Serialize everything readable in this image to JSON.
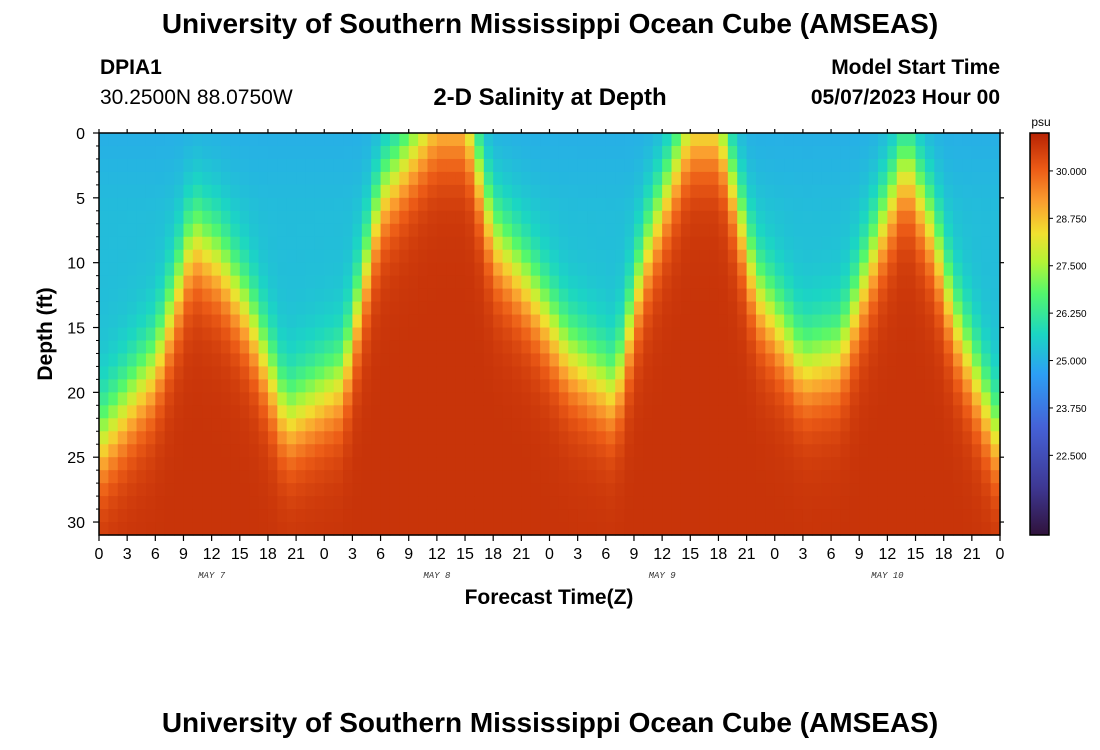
{
  "header": {
    "title": "University of Southern Mississippi Ocean Cube (AMSEAS)",
    "title_bottom": "University of Southern Mississippi Ocean Cube (AMSEAS)",
    "station": "DPIA1",
    "coords": "30.2500N  88.0750W",
    "plot_title": "2-D Salinity at Depth",
    "model_label": "Model Start Time",
    "model_time": "05/07/2023 Hour 00"
  },
  "chart_data": {
    "type": "heatmap",
    "title": "2-D Salinity at Depth",
    "xlabel": "Forecast Time(Z)",
    "ylabel": "Depth (ft)",
    "x_range_hours": [
      0,
      96
    ],
    "ylim": [
      0,
      31
    ],
    "y_ticks": [
      0,
      5,
      10,
      15,
      20,
      25,
      30
    ],
    "y_tick_labels": [
      "0",
      "5",
      "10",
      "15",
      "20",
      "25",
      "30"
    ],
    "x_tick_labels": [
      "0",
      "3",
      "6",
      "9",
      "12",
      "15",
      "18",
      "21",
      "0",
      "3",
      "6",
      "9",
      "12",
      "15",
      "18",
      "21",
      "0",
      "3",
      "6",
      "9",
      "12",
      "15",
      "18",
      "21",
      "0",
      "3",
      "6",
      "9",
      "12",
      "15",
      "18",
      "21",
      "0"
    ],
    "day_labels": [
      {
        "label": "MAY 7",
        "hour": 12
      },
      {
        "label": "MAY 8",
        "hour": 36
      },
      {
        "label": "MAY 9",
        "hour": 60
      },
      {
        "label": "MAY 10",
        "hour": 84
      }
    ],
    "colorbar": {
      "unit": "psu",
      "min": 20.4,
      "max": 31.0,
      "ticks": [
        30.0,
        28.75,
        27.5,
        26.25,
        25.0,
        23.75,
        22.5
      ],
      "tick_labels": [
        "30.000",
        "28.750",
        "27.500",
        "26.250",
        "25.000",
        "23.750",
        "22.500"
      ]
    },
    "salinity_profile": {
      "description_hours": [
        0,
        6,
        10,
        13,
        16,
        20,
        26,
        30,
        36,
        39,
        42,
        46,
        50,
        55,
        58,
        63,
        66,
        70,
        75,
        79,
        84,
        86,
        89,
        91,
        93,
        96
      ],
      "halocline_depth_ft": [
        24,
        18,
        8,
        10,
        14,
        22,
        19,
        5,
        -2,
        -2,
        8,
        12,
        17,
        20,
        10,
        -1,
        -1,
        12,
        18,
        17,
        6,
        2,
        8,
        14,
        18,
        24
      ],
      "surface_psu": 25.2,
      "bottom_psu": 30.7
    }
  }
}
